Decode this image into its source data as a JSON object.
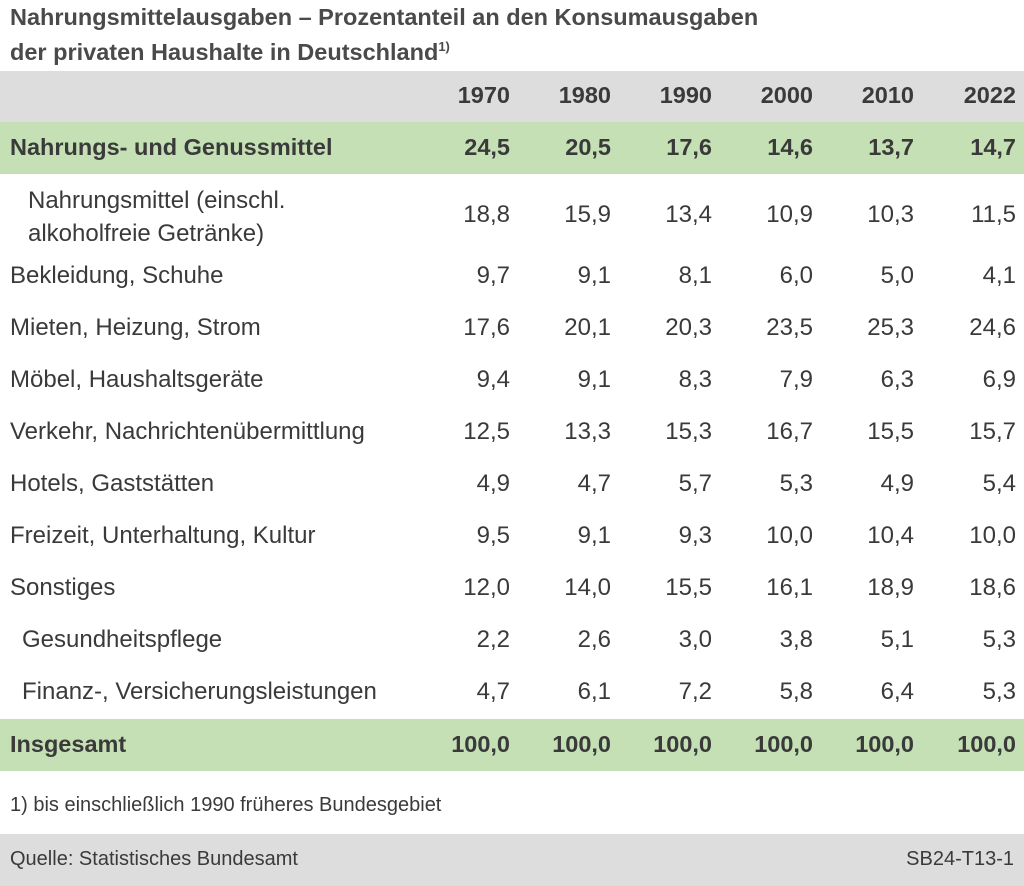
{
  "title": {
    "line1": "Nahrungsmittelausgaben – Prozentanteil an den Konsumausgaben",
    "line2": "der privaten Haushalte in Deutschland",
    "footnote_mark": "1)"
  },
  "table": {
    "years": [
      "1970",
      "1980",
      "1990",
      "2000",
      "2010",
      "2022"
    ],
    "highlight": {
      "label": "Nahrungs- und Genussmittel",
      "values": [
        "24,5",
        "20,5",
        "17,6",
        "14,6",
        "13,7",
        "14,7"
      ]
    },
    "sub_food": {
      "label_line1": "Nahrungsmittel (einschl.",
      "label_line2": "alkoholfreie Getränke)",
      "values": [
        "18,8",
        "15,9",
        "13,4",
        "10,9",
        "10,3",
        "11,5"
      ]
    },
    "rows": [
      {
        "label": "Bekleidung, Schuhe",
        "values": [
          "9,7",
          "9,1",
          "8,1",
          "6,0",
          "5,0",
          "4,1"
        ]
      },
      {
        "label": "Mieten, Heizung, Strom",
        "values": [
          "17,6",
          "20,1",
          "20,3",
          "23,5",
          "25,3",
          "24,6"
        ]
      },
      {
        "label": "Möbel, Haushaltsgeräte",
        "values": [
          "9,4",
          "9,1",
          "8,3",
          "7,9",
          "6,3",
          "6,9"
        ]
      },
      {
        "label": "Verkehr, Nachrichtenübermittlung",
        "values": [
          "12,5",
          "13,3",
          "15,3",
          "16,7",
          "15,5",
          "15,7"
        ]
      },
      {
        "label": "Hotels, Gaststätten",
        "values": [
          "4,9",
          "4,7",
          "5,7",
          "5,3",
          "4,9",
          "5,4"
        ]
      },
      {
        "label": "Freizeit, Unterhaltung, Kultur",
        "values": [
          "9,5",
          "9,1",
          "9,3",
          "10,0",
          "10,4",
          "10,0"
        ]
      },
      {
        "label": "Sonstiges",
        "values": [
          "12,0",
          "14,0",
          "15,5",
          "16,1",
          "18,9",
          "18,6"
        ]
      }
    ],
    "sub_rows": [
      {
        "label": "Gesundheitspflege",
        "values": [
          "2,2",
          "2,6",
          "3,0",
          "3,8",
          "5,1",
          "5,3"
        ]
      },
      {
        "label": "Finanz-, Versicherungsleistungen",
        "values": [
          "4,7",
          "6,1",
          "7,2",
          "5,8",
          "6,4",
          "5,3"
        ]
      }
    ],
    "total": {
      "label": "Insgesamt",
      "values": [
        "100,0",
        "100,0",
        "100,0",
        "100,0",
        "100,0",
        "100,0"
      ]
    }
  },
  "footnote": "1) bis einschließlich 1990 früheres Bundesgebiet",
  "footer": {
    "source": "Quelle: Statistisches Bundesamt",
    "code": "SB24-T13-1"
  },
  "colors": {
    "header_bg": "#dddddd",
    "highlight_bg": "#c5e0b5",
    "text": "#3a3a3a"
  }
}
